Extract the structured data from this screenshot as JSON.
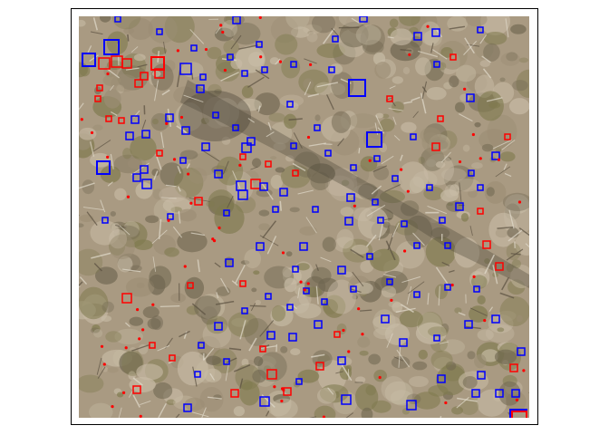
{
  "figure": {
    "description_colors": {
      "frame": "#000000",
      "background": "#ffffff",
      "ground_base": "#a99a82",
      "ground_light": "#c8bca6",
      "ground_dark": "#6f6650",
      "vegetation": "#7f7a4e",
      "shadow": "#4b4436",
      "box_class_a": "#0000ff",
      "box_class_b": "#ff0000"
    },
    "legend": null,
    "annotation_classes": [
      {
        "color": "#0000ff",
        "role": "blue bounding boxes"
      },
      {
        "color": "#ff0000",
        "role": "red bounding boxes"
      }
    ]
  }
}
